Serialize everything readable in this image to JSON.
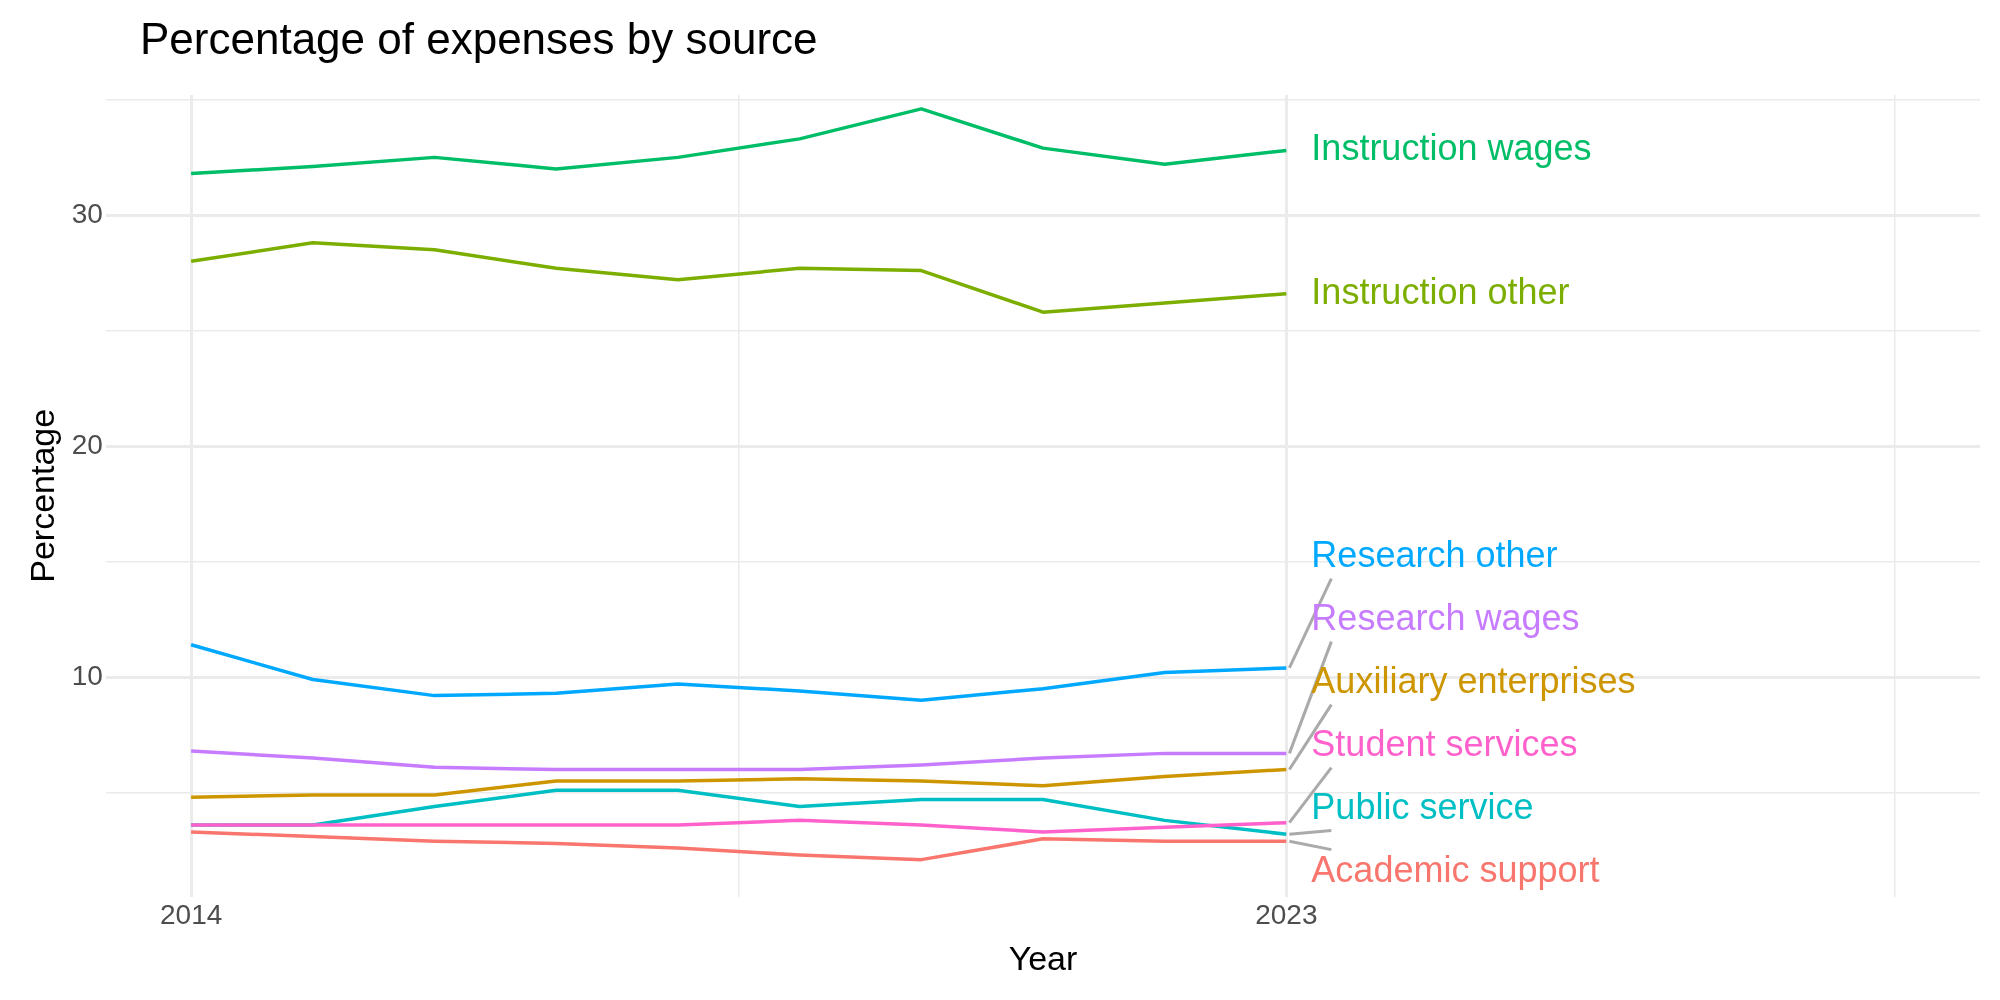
{
  "chart_data": {
    "type": "line",
    "title": "Percentage of expenses by source",
    "xlabel": "Year",
    "ylabel": "Percentage",
    "x": [
      2014,
      2015,
      2016,
      2017,
      2018,
      2019,
      2020,
      2021,
      2022,
      2023
    ],
    "series": [
      {
        "name": "Instruction wages",
        "color": "#00be67",
        "values": [
          31.8,
          32.1,
          32.5,
          32.0,
          32.5,
          33.3,
          34.6,
          32.9,
          32.2,
          32.8
        ]
      },
      {
        "name": "Instruction other",
        "color": "#7cae00",
        "values": [
          28.0,
          28.8,
          28.5,
          27.7,
          27.2,
          27.7,
          27.6,
          25.8,
          26.2,
          26.6
        ]
      },
      {
        "name": "Research other",
        "color": "#00a9ff",
        "values": [
          11.4,
          9.9,
          9.2,
          9.3,
          9.7,
          9.4,
          9.0,
          9.5,
          10.2,
          10.4
        ]
      },
      {
        "name": "Research wages",
        "color": "#c77cff",
        "values": [
          6.8,
          6.5,
          6.1,
          6.0,
          6.0,
          6.0,
          6.2,
          6.5,
          6.7,
          6.7
        ]
      },
      {
        "name": "Auxiliary enterprises",
        "color": "#cd9600",
        "values": [
          4.8,
          4.9,
          4.9,
          5.5,
          5.5,
          5.6,
          5.5,
          5.3,
          5.7,
          6.0
        ]
      },
      {
        "name": "Student services",
        "color": "#ff61cc",
        "values": [
          3.6,
          3.6,
          3.6,
          3.6,
          3.6,
          3.8,
          3.6,
          3.3,
          3.5,
          3.7
        ]
      },
      {
        "name": "Public service",
        "color": "#00bfc4",
        "values": [
          3.6,
          3.6,
          4.4,
          5.1,
          5.1,
          4.4,
          4.7,
          4.7,
          3.8,
          3.2
        ]
      },
      {
        "name": "Academic support",
        "color": "#f8766d",
        "values": [
          3.3,
          3.1,
          2.9,
          2.8,
          2.6,
          2.3,
          2.1,
          3.0,
          2.9,
          2.9
        ]
      }
    ],
    "xlim": [
      2013.3,
      2028.7
    ],
    "xticks": [
      2014,
      {
        "value": 2018.5,
        "label": null
      },
      2023,
      {
        "value": 2028,
        "label": null
      }
    ],
    "ylim": [
      0.5,
      35.2
    ],
    "yticks": [
      {
        "value": 5,
        "label": null
      },
      10,
      {
        "value": 15,
        "label": null
      },
      20,
      {
        "value": 25,
        "label": null
      },
      30,
      {
        "value": 35,
        "label": null
      }
    ],
    "grid": true,
    "legend": false,
    "marker": "none",
    "line_style": "solid"
  }
}
